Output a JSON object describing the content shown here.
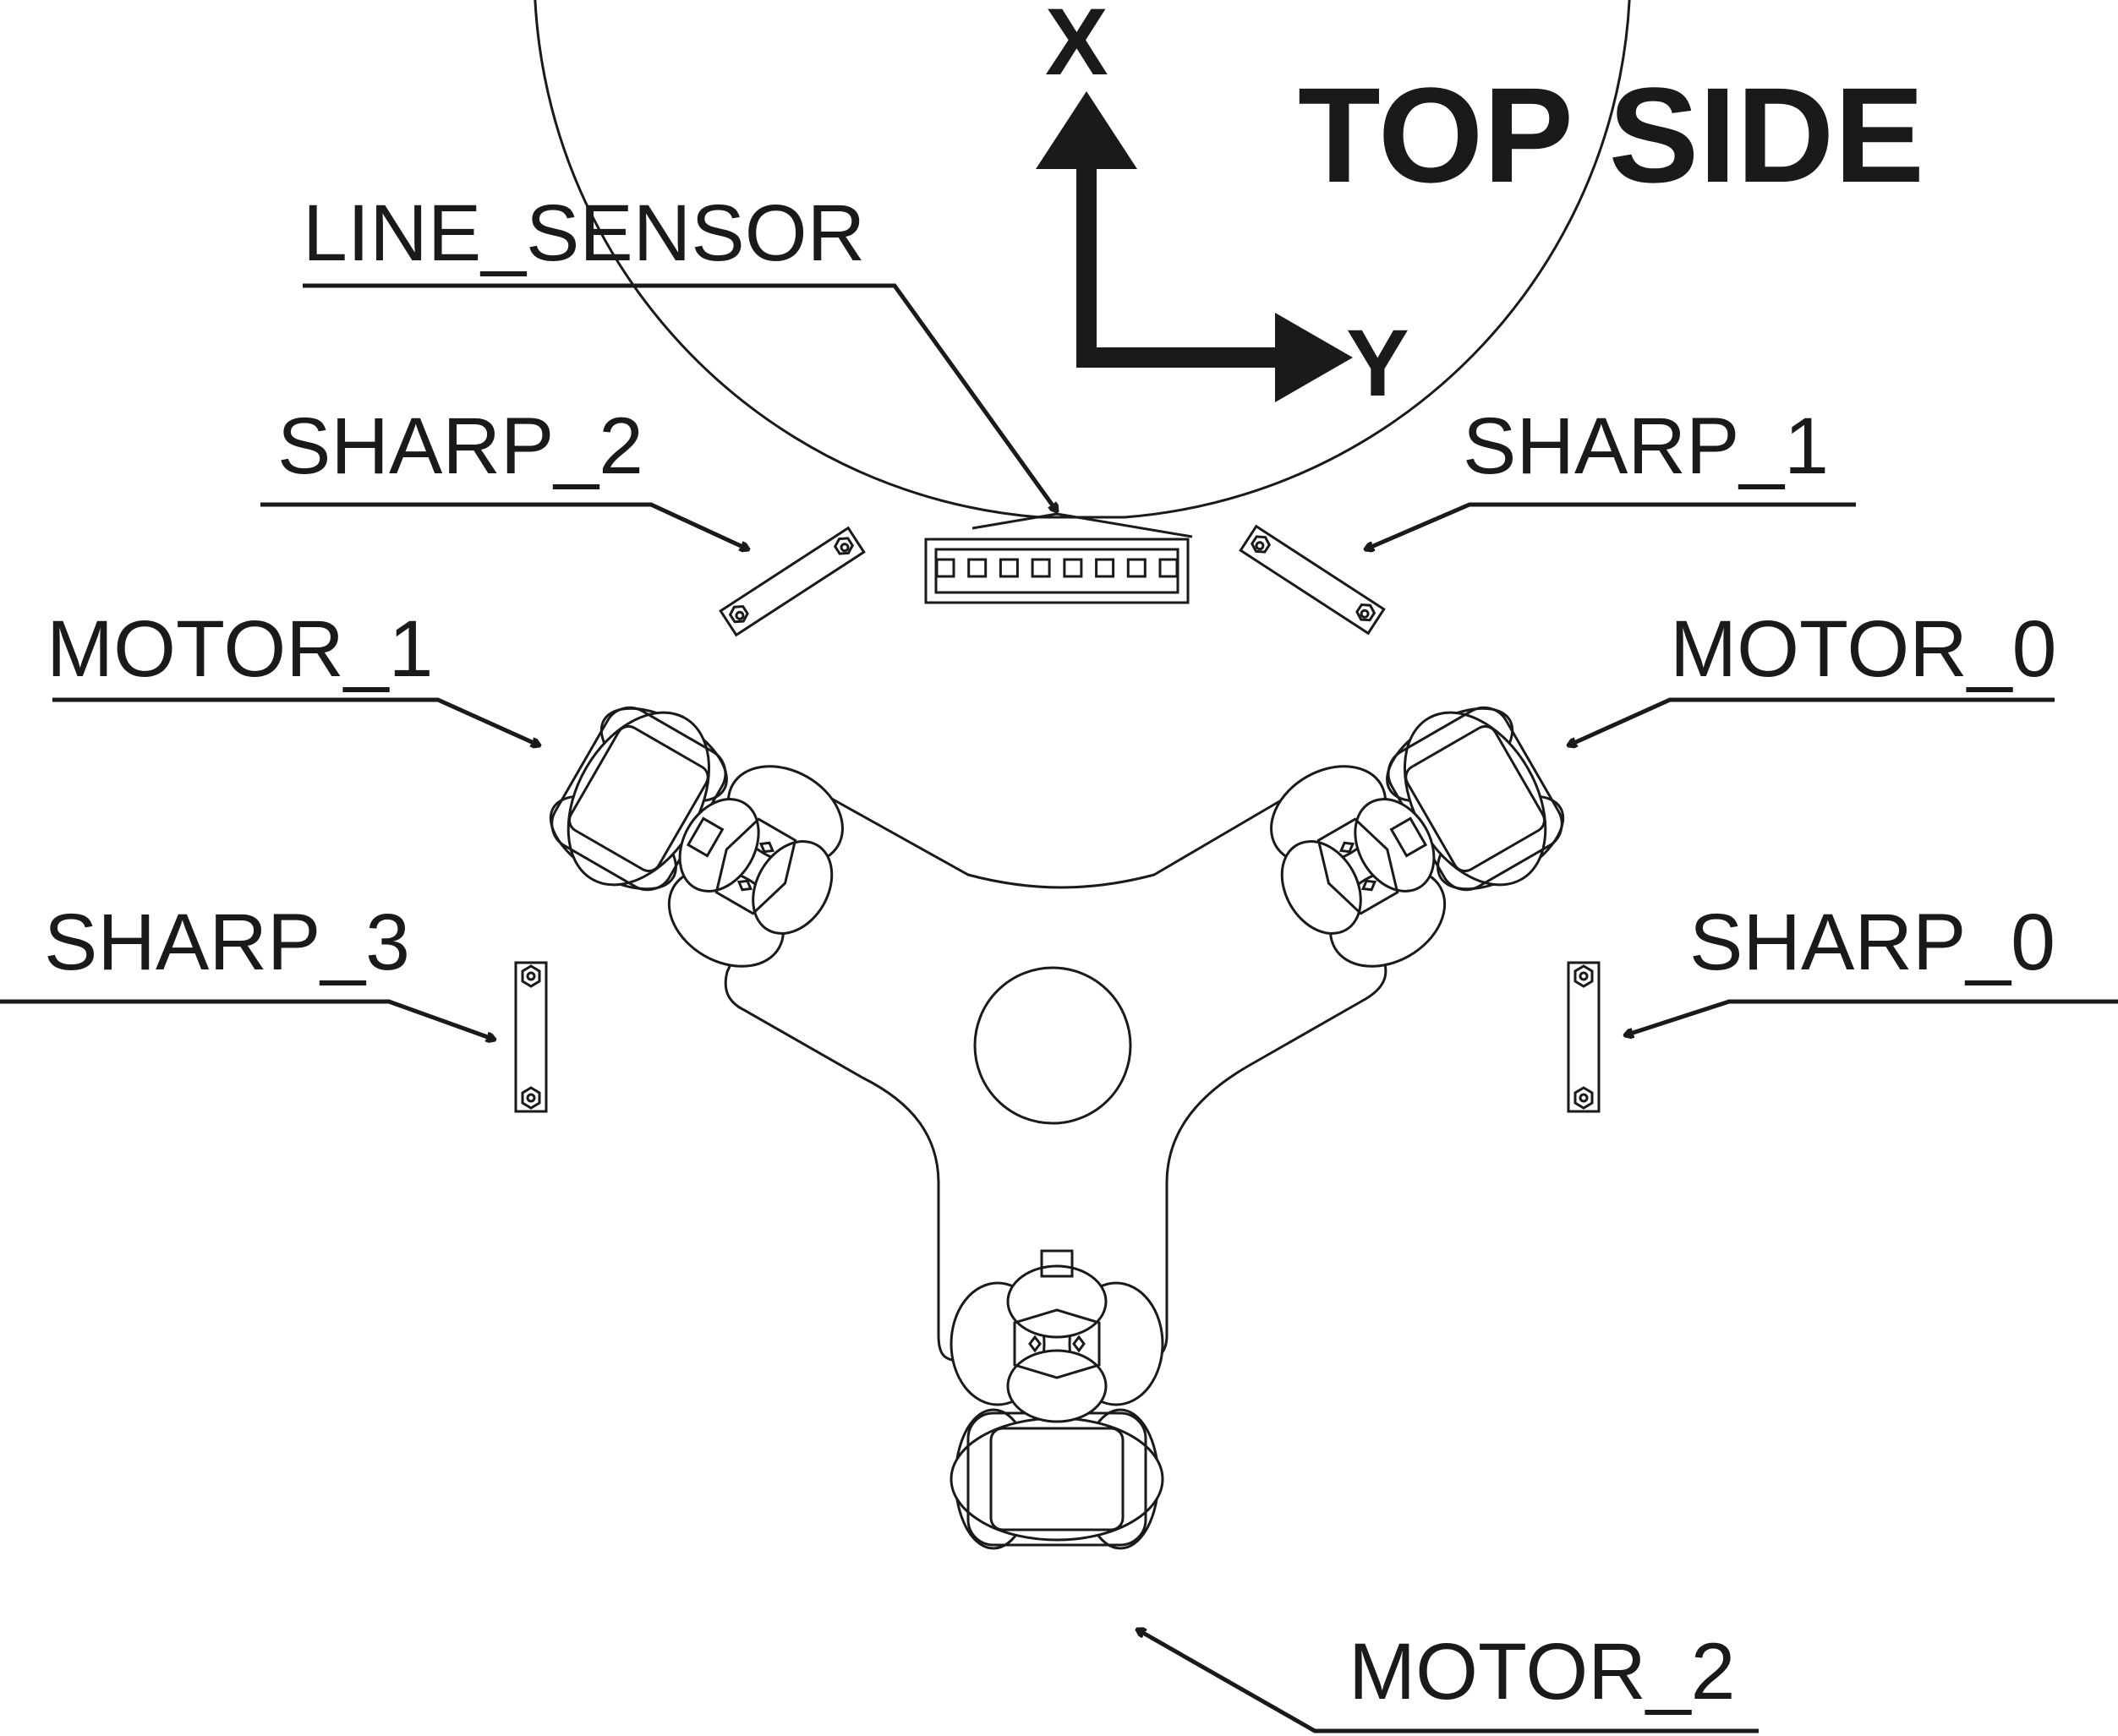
{
  "title": "TOP SIDE",
  "axes": {
    "x_label": "X",
    "y_label": "Y"
  },
  "components": {
    "line_sensor": "LINE_SENSOR",
    "sharp_0": "SHARP_0",
    "sharp_1": "SHARP_1",
    "sharp_2": "SHARP_2",
    "sharp_3": "SHARP_3",
    "motor_0": "MOTOR_0",
    "motor_1": "MOTOR_1",
    "motor_2": "MOTOR_2"
  },
  "line_sensor_elements": 8,
  "colors": {
    "ink": "#1a1a1a",
    "background": "#ffffff"
  },
  "icons": [
    "robot-chassis-outline",
    "omni-wheel-icon",
    "distance-sensor-icon",
    "line-sensor-array-icon",
    "axis-arrow-icon"
  ]
}
